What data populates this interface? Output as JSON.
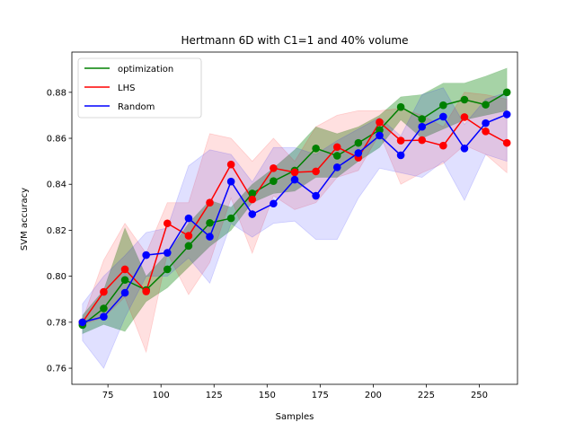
{
  "chart_data": {
    "type": "line",
    "title": "Hertmann 6D with C1=1 and 40% volume",
    "xlabel": "Samples",
    "ylabel": "SVM accuracy",
    "xlim": [
      58,
      268
    ],
    "ylim": [
      0.753,
      0.8975
    ],
    "xticks": [
      75,
      100,
      125,
      150,
      175,
      200,
      225,
      250
    ],
    "yticks": [
      0.76,
      0.78,
      0.8,
      0.82,
      0.84,
      0.86,
      0.88
    ],
    "legend_position": "upper-left",
    "grid": false,
    "x": [
      63,
      73,
      83,
      93,
      103,
      113,
      123,
      133,
      143,
      153,
      163,
      173,
      183,
      193,
      203,
      213,
      223,
      233,
      243,
      253,
      263
    ],
    "series": [
      {
        "name": "optimization",
        "color": "#008000",
        "values": [
          0.7788,
          0.786,
          0.7984,
          0.794,
          0.803,
          0.8132,
          0.8232,
          0.8252,
          0.836,
          0.8414,
          0.846,
          0.8556,
          0.8524,
          0.858,
          0.8636,
          0.8736,
          0.8684,
          0.8744,
          0.8768,
          0.8746,
          0.88
        ],
        "lower": [
          0.775,
          0.779,
          0.776,
          0.789,
          0.795,
          0.804,
          0.813,
          0.82,
          0.832,
          0.836,
          0.837,
          0.843,
          0.843,
          0.85,
          0.856,
          0.868,
          0.86,
          0.864,
          0.868,
          0.87,
          0.872
        ],
        "upper": [
          0.783,
          0.794,
          0.821,
          0.8,
          0.81,
          0.823,
          0.833,
          0.83,
          0.84,
          0.847,
          0.855,
          0.865,
          0.862,
          0.865,
          0.87,
          0.878,
          0.879,
          0.884,
          0.884,
          0.887,
          0.8905
        ]
      },
      {
        "name": "LHS",
        "color": "#ff0000",
        "values": [
          0.78,
          0.7932,
          0.803,
          0.7934,
          0.823,
          0.8176,
          0.832,
          0.8486,
          0.8334,
          0.847,
          0.8452,
          0.8456,
          0.8562,
          0.8516,
          0.867,
          0.859,
          0.8592,
          0.8568,
          0.8692,
          0.863,
          0.858
        ],
        "lower": [
          0.779,
          0.782,
          0.791,
          0.767,
          0.81,
          0.792,
          0.806,
          0.834,
          0.81,
          0.835,
          0.829,
          0.832,
          0.843,
          0.846,
          0.862,
          0.84,
          0.845,
          0.849,
          0.857,
          0.853,
          0.845
        ],
        "upper": [
          0.781,
          0.807,
          0.823,
          0.81,
          0.832,
          0.832,
          0.862,
          0.86,
          0.85,
          0.86,
          0.85,
          0.865,
          0.87,
          0.872,
          0.872,
          0.873,
          0.87,
          0.865,
          0.88,
          0.879,
          0.877
        ]
      },
      {
        "name": "Random",
        "color": "#0000ff",
        "values": [
          0.78,
          0.7824,
          0.7928,
          0.8092,
          0.8102,
          0.8252,
          0.8172,
          0.8412,
          0.827,
          0.8316,
          0.842,
          0.835,
          0.8474,
          0.8536,
          0.8612,
          0.8526,
          0.865,
          0.8694,
          0.8556,
          0.8666,
          0.8704
        ],
        "lower": [
          0.772,
          0.76,
          0.782,
          0.8,
          0.8,
          0.808,
          0.797,
          0.823,
          0.817,
          0.823,
          0.824,
          0.816,
          0.816,
          0.834,
          0.847,
          0.845,
          0.843,
          0.85,
          0.833,
          0.853,
          0.85
        ],
        "upper": [
          0.788,
          0.8,
          0.809,
          0.819,
          0.821,
          0.848,
          0.855,
          0.853,
          0.841,
          0.856,
          0.856,
          0.853,
          0.859,
          0.864,
          0.869,
          0.861,
          0.879,
          0.882,
          0.866,
          0.877,
          0.88
        ]
      }
    ]
  }
}
